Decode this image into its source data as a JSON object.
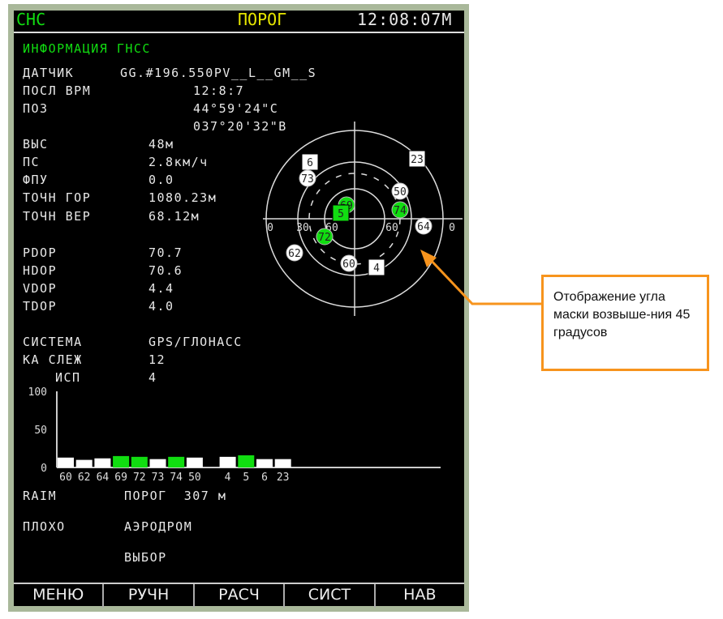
{
  "header": {
    "mode": "СНС",
    "status": "ПОРОГ",
    "time": "12:08:07М"
  },
  "title": "ИНФОРМАЦИЯ ГНСС",
  "fields": [
    {
      "label": "ДАТЧИК",
      "value": "GG.#196.550PV__L__GM__S"
    },
    {
      "label": "ПОСЛ ВРМ",
      "value": "12:8:7"
    },
    {
      "label": "ПОЗ",
      "value": "44°59'24\"С"
    },
    {
      "label": "",
      "value": "037°20'32\"В"
    },
    {
      "label": "ВЫС",
      "value": "48м"
    },
    {
      "label": "ПС",
      "value": "2.8км/ч"
    },
    {
      "label": "ФПУ",
      "value": "0.0"
    },
    {
      "label": "ТОЧН ГОР",
      "value": "1080.23м"
    },
    {
      "label": "ТОЧН ВЕР",
      "value": "68.12м"
    },
    {
      "label": "PDOP",
      "value": "70.7"
    },
    {
      "label": "HDOP",
      "value": "70.6"
    },
    {
      "label": "VDOP",
      "value": "4.4"
    },
    {
      "label": "TDOP",
      "value": "4.0"
    },
    {
      "label": "СИСТЕМА",
      "value": "GPS/ГЛОНАСС"
    },
    {
      "label": "КА СЛЕЖ",
      "value": "12"
    },
    {
      "label": "ИСП",
      "value": "4"
    }
  ],
  "skyplot": {
    "elevation_ticks": [
      "0",
      "30",
      "60",
      "60",
      "0"
    ],
    "mask_angle_deg": 45,
    "satellites": [
      {
        "id": "6",
        "shape": "square",
        "used": false
      },
      {
        "id": "73",
        "shape": "circle",
        "used": false
      },
      {
        "id": "23",
        "shape": "square",
        "used": false
      },
      {
        "id": "50",
        "shape": "circle",
        "used": false
      },
      {
        "id": "69",
        "shape": "circle",
        "used": true
      },
      {
        "id": "5",
        "shape": "square",
        "used": true
      },
      {
        "id": "74",
        "shape": "circle",
        "used": true
      },
      {
        "id": "72",
        "shape": "circle",
        "used": true
      },
      {
        "id": "64",
        "shape": "circle",
        "used": false
      },
      {
        "id": "62",
        "shape": "circle",
        "used": false
      },
      {
        "id": "60",
        "shape": "circle",
        "used": false
      },
      {
        "id": "4",
        "shape": "square",
        "used": false
      }
    ]
  },
  "chart_data": {
    "type": "bar",
    "yticks": [
      "100",
      "50",
      "0"
    ],
    "ylim": [
      0,
      100
    ],
    "categories": [
      "60",
      "62",
      "64",
      "69",
      "72",
      "73",
      "74",
      "50",
      "4",
      "5",
      "6",
      "23"
    ],
    "values": [
      13,
      10,
      12,
      15,
      14,
      11,
      14,
      13,
      14,
      16,
      11,
      11
    ],
    "used": [
      false,
      false,
      false,
      true,
      true,
      false,
      true,
      false,
      false,
      true,
      false,
      false
    ]
  },
  "raim": {
    "label": "RAIM",
    "threshold": "ПОРОГ  307 м",
    "state": "ПЛОХО",
    "option1": "АЭРОДРОМ",
    "option2": "ВЫБОР"
  },
  "buttons": [
    "МЕНЮ",
    "РУЧН",
    "РАСЧ",
    "СИСТ",
    "НАВ"
  ],
  "annotation": "Отображение угла маски возвыше-ния 45 градусов",
  "colors": {
    "used": "#11dd11",
    "unused": "#ffffff",
    "accent": "#f7941d",
    "status": "#e6e600"
  }
}
